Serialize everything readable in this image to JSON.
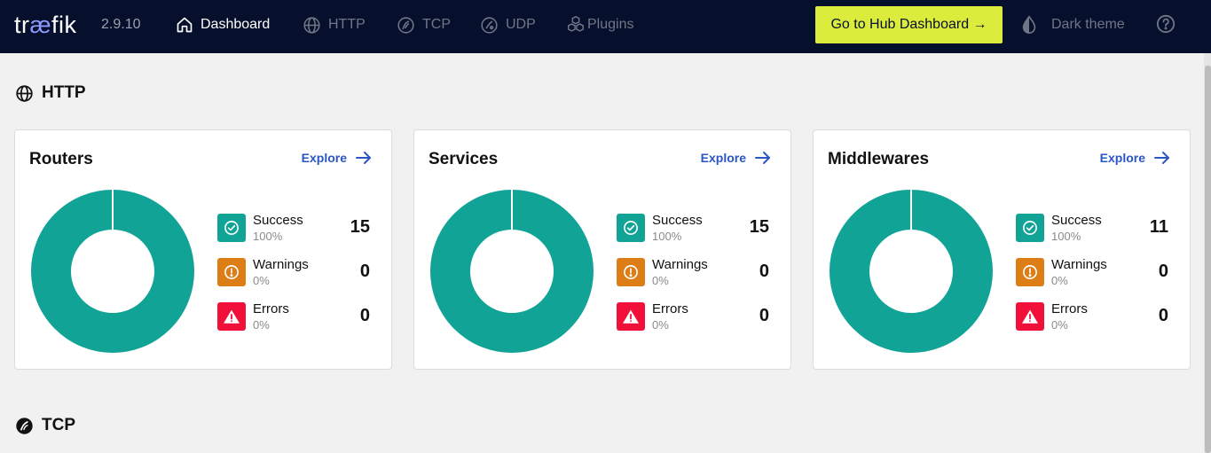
{
  "app": {
    "logo": {
      "prefix": "tr",
      "ae": "æ",
      "suffix": "fik"
    },
    "version": "2.9.10"
  },
  "nav": [
    {
      "label": "Dashboard",
      "icon": "home-icon",
      "active": true
    },
    {
      "label": "HTTP",
      "icon": "globe-icon",
      "active": false
    },
    {
      "label": "TCP",
      "icon": "tcp-icon",
      "active": false
    },
    {
      "label": "UDP",
      "icon": "udp-icon",
      "active": false
    },
    {
      "label": "Plugins",
      "icon": "plugins-icon",
      "active": false
    }
  ],
  "hub_button": "Go to Hub Dashboard →",
  "theme_toggle": "Dark theme",
  "sections": {
    "http": {
      "title": "HTTP"
    },
    "tcp": {
      "title": "TCP"
    }
  },
  "explore_label": "Explore",
  "cards": [
    {
      "title": "Routers",
      "stats": [
        {
          "label": "Success",
          "pct": "100%",
          "count": "15"
        },
        {
          "label": "Warnings",
          "pct": "0%",
          "count": "0"
        },
        {
          "label": "Errors",
          "pct": "0%",
          "count": "0"
        }
      ],
      "chart": {
        "success": 15,
        "warnings": 0,
        "errors": 0
      }
    },
    {
      "title": "Services",
      "stats": [
        {
          "label": "Success",
          "pct": "100%",
          "count": "15"
        },
        {
          "label": "Warnings",
          "pct": "0%",
          "count": "0"
        },
        {
          "label": "Errors",
          "pct": "0%",
          "count": "0"
        }
      ],
      "chart": {
        "success": 15,
        "warnings": 0,
        "errors": 0
      }
    },
    {
      "title": "Middlewares",
      "stats": [
        {
          "label": "Success",
          "pct": "100%",
          "count": "11"
        },
        {
          "label": "Warnings",
          "pct": "0%",
          "count": "0"
        },
        {
          "label": "Errors",
          "pct": "0%",
          "count": "0"
        }
      ],
      "chart": {
        "success": 11,
        "warnings": 0,
        "errors": 0
      }
    }
  ],
  "colors": {
    "topbar": "#06102c",
    "accent": "#dcec3c",
    "success": "#11a496",
    "warning": "#dc7d15",
    "error": "#f0103a",
    "link": "#2c55c5"
  }
}
